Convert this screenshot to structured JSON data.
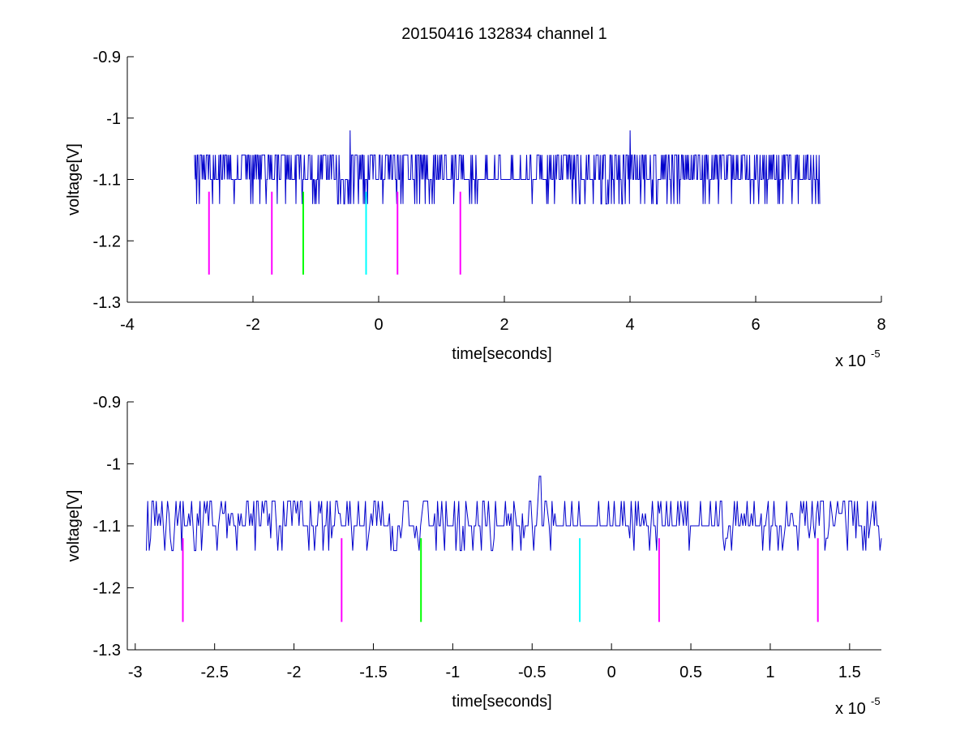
{
  "figure_title": "20150416 132834 channel 1",
  "chart_data": [
    {
      "type": "line",
      "xlabel": "time[seconds]",
      "ylabel": "voltage[V]",
      "x_exponent_label": "x 10",
      "x_exponent": "-5",
      "xlim": [
        -4,
        8
      ],
      "ylim": [
        -1.3,
        -0.9
      ],
      "xticks": [
        -4,
        -2,
        0,
        2,
        4,
        6,
        8
      ],
      "xtick_labels": [
        "-4",
        "-2",
        "0",
        "2",
        "4",
        "6",
        "8"
      ],
      "yticks": [
        -0.9,
        -1.0,
        -1.1,
        -1.2,
        -1.3
      ],
      "ytick_labels": [
        "-0.9",
        "-1",
        "-1.1",
        "-1.2",
        "-1.3"
      ],
      "grid": false,
      "signal": {
        "color": "#0000cc",
        "x_range": [
          -2.93,
          7.02
        ],
        "baseline": -1.1,
        "levels": [
          -1.06,
          -1.1,
          -1.14
        ],
        "peaks": [
          {
            "x": -0.45,
            "y": -1.02
          },
          {
            "x": 4.0,
            "y": -1.02
          }
        ]
      },
      "markers": [
        {
          "x": -2.7,
          "color": "#ff00ff",
          "y_top": -1.12,
          "y_bottom": -1.255
        },
        {
          "x": -1.7,
          "color": "#ff00ff",
          "y_top": -1.12,
          "y_bottom": -1.255
        },
        {
          "x": -1.2,
          "color": "#00ff00",
          "y_top": -1.12,
          "y_bottom": -1.255
        },
        {
          "x": -0.2,
          "color": "#00ffff",
          "y_top": -1.12,
          "y_bottom": -1.255
        },
        {
          "x": 0.3,
          "color": "#ff00ff",
          "y_top": -1.12,
          "y_bottom": -1.255
        },
        {
          "x": 1.3,
          "color": "#ff00ff",
          "y_top": -1.12,
          "y_bottom": -1.255
        }
      ]
    },
    {
      "type": "line",
      "xlabel": "time[seconds]",
      "ylabel": "voltage[V]",
      "x_exponent_label": "x 10",
      "x_exponent": "-5",
      "xlim": [
        -3.05,
        1.7
      ],
      "ylim": [
        -1.3,
        -0.9
      ],
      "xticks": [
        -3,
        -2.5,
        -2,
        -1.5,
        -1,
        -0.5,
        0,
        0.5,
        1,
        1.5
      ],
      "xtick_labels": [
        "-3",
        "-2.5",
        "-2",
        "-1.5",
        "-1",
        "-0.5",
        "0",
        "0.5",
        "1",
        "1.5"
      ],
      "yticks": [
        -0.9,
        -1.0,
        -1.1,
        -1.2,
        -1.3
      ],
      "ytick_labels": [
        "-0.9",
        "-1",
        "-1.1",
        "-1.2",
        "-1.3"
      ],
      "grid": false,
      "signal": {
        "color": "#0000cc",
        "x_range": [
          -2.93,
          1.7
        ],
        "baseline": -1.1,
        "levels": [
          -1.06,
          -1.08,
          -1.1,
          -1.12,
          -1.14
        ],
        "peaks": [
          {
            "x": -0.45,
            "y": -1.02
          }
        ]
      },
      "markers": [
        {
          "x": -2.7,
          "color": "#ff00ff",
          "y_top": -1.12,
          "y_bottom": -1.255
        },
        {
          "x": -1.7,
          "color": "#ff00ff",
          "y_top": -1.12,
          "y_bottom": -1.255
        },
        {
          "x": -1.2,
          "color": "#00ff00",
          "y_top": -1.12,
          "y_bottom": -1.255
        },
        {
          "x": -0.2,
          "color": "#00ffff",
          "y_top": -1.12,
          "y_bottom": -1.255
        },
        {
          "x": 0.3,
          "color": "#ff00ff",
          "y_top": -1.12,
          "y_bottom": -1.255
        },
        {
          "x": 1.3,
          "color": "#ff00ff",
          "y_top": -1.12,
          "y_bottom": -1.255
        }
      ]
    }
  ]
}
